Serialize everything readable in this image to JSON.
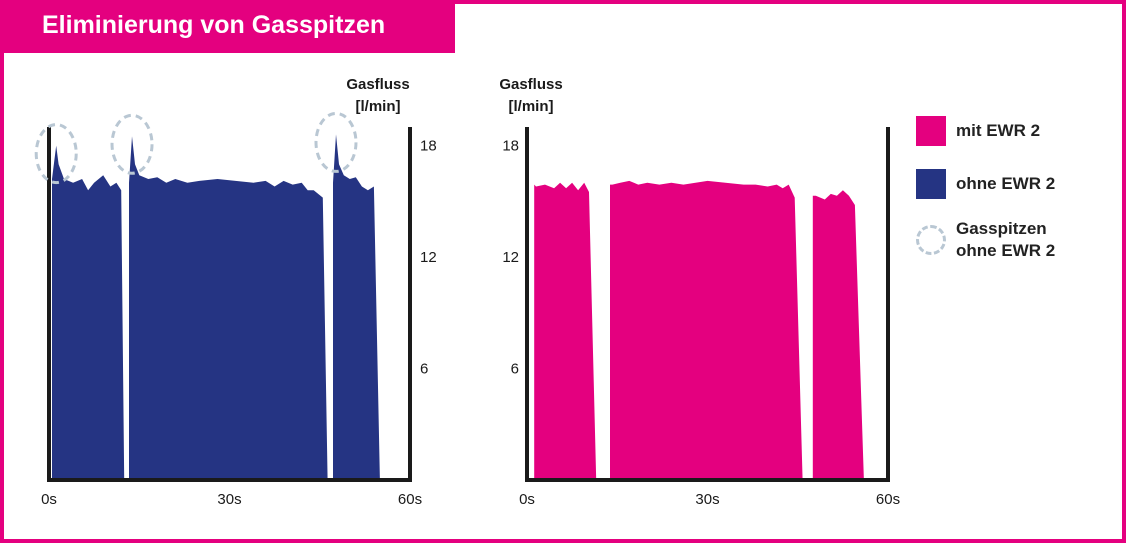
{
  "title": "Eliminierung von Gasspitzen",
  "colors": {
    "brand": "#e4007f",
    "mit": "#e4007f",
    "ohne": "#253483",
    "spike": "#b9c7d3",
    "axis": "#1a1a1a"
  },
  "legend": {
    "mit_label": "mit EWR 2",
    "ohne_label": "ohne EWR 2",
    "spike_label_line1": "Gasspitzen",
    "spike_label_line2": "ohne EWR 2"
  },
  "chart_data": [
    {
      "type": "area",
      "series": [
        {
          "name": "ohne EWR 2",
          "color": "#253483"
        }
      ],
      "ylabel": [
        "Gasfluss",
        "[l/min]"
      ],
      "y_axis_side": "right",
      "yticks": [
        6,
        12,
        18
      ],
      "xticks": [
        "0s",
        "30s",
        "60s"
      ],
      "xlim": [
        0,
        60
      ],
      "ylim": [
        0,
        19
      ],
      "segments": [
        {
          "x": [
            0.5,
            1.2,
            1.6,
            2.5,
            4,
            5.5,
            6.5,
            7.5,
            9,
            10.2,
            11.2,
            12.0,
            12.5
          ],
          "y": [
            16.2,
            18.0,
            17.0,
            16.2,
            16.0,
            16.2,
            15.6,
            16.0,
            16.4,
            15.8,
            16.0,
            15.6,
            0
          ]
        },
        {
          "x": [
            13.3,
            13.8,
            14.3,
            15,
            16.5,
            18,
            19.5,
            21,
            23,
            25,
            28,
            31,
            34,
            36,
            37.5,
            39,
            40.5,
            42,
            43,
            44,
            45.5,
            46.3
          ],
          "y": [
            16.0,
            18.5,
            17.0,
            16.4,
            16.2,
            16.3,
            16.0,
            16.2,
            16.0,
            16.1,
            16.2,
            16.1,
            16.0,
            16.1,
            15.8,
            16.1,
            15.9,
            16.0,
            15.6,
            15.6,
            15.2,
            0
          ]
        },
        {
          "x": [
            47.2,
            47.7,
            48.2,
            49,
            50,
            51,
            52,
            53,
            54,
            55
          ],
          "y": [
            16.0,
            18.6,
            17.0,
            16.4,
            16.2,
            16.3,
            15.8,
            15.6,
            15.8,
            0
          ]
        }
      ],
      "spike_markers": [
        {
          "x": 1.2,
          "y": 18.0
        },
        {
          "x": 13.8,
          "y": 18.5
        },
        {
          "x": 47.7,
          "y": 18.6
        }
      ]
    },
    {
      "type": "area",
      "series": [
        {
          "name": "mit EWR 2",
          "color": "#e4007f"
        }
      ],
      "ylabel": [
        "Gasfluss",
        "[l/min]"
      ],
      "y_axis_side": "left",
      "yticks": [
        6,
        12,
        18
      ],
      "xticks": [
        "0s",
        "30s",
        "60s"
      ],
      "xlim": [
        0,
        60
      ],
      "ylim": [
        0,
        19
      ],
      "segments": [
        {
          "x": [
            1.2,
            1.5,
            3,
            4.5,
            5.5,
            6.5,
            7.5,
            8.5,
            9.5,
            10.3,
            11.5
          ],
          "y": [
            15.9,
            15.8,
            15.9,
            15.7,
            16.0,
            15.7,
            16.0,
            15.6,
            16.0,
            15.5,
            0
          ]
        },
        {
          "x": [
            13.8,
            14.2,
            15.5,
            17,
            18.5,
            20,
            22,
            24,
            26,
            28,
            30,
            33,
            36,
            38,
            40,
            41.5,
            42.5,
            43.5,
            44.5,
            45.8
          ],
          "y": [
            15.9,
            15.9,
            16.0,
            16.1,
            15.9,
            16.0,
            15.9,
            16.0,
            15.9,
            16.0,
            16.1,
            16.0,
            15.9,
            15.9,
            15.8,
            15.9,
            15.7,
            15.9,
            15.2,
            0
          ]
        },
        {
          "x": [
            47.5,
            48,
            49.5,
            50.5,
            51.5,
            52.5,
            53.5,
            54.5,
            56
          ],
          "y": [
            15.3,
            15.3,
            15.1,
            15.4,
            15.3,
            15.6,
            15.3,
            14.8,
            0
          ]
        }
      ]
    }
  ]
}
